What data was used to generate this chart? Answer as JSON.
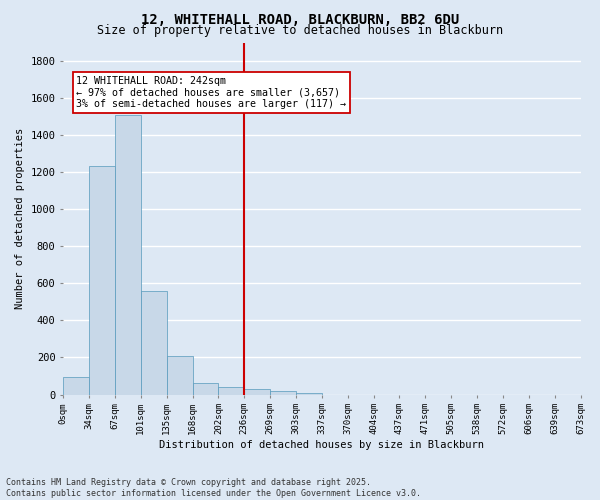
{
  "title": "12, WHITEHALL ROAD, BLACKBURN, BB2 6DU",
  "subtitle": "Size of property relative to detached houses in Blackburn",
  "xlabel": "Distribution of detached houses by size in Blackburn",
  "ylabel": "Number of detached properties",
  "bar_color": "#c8d8e8",
  "bar_edge_color": "#5599bb",
  "background_color": "#dde8f4",
  "grid_color": "#ffffff",
  "vline_color": "#cc0000",
  "vline_x": 7,
  "annotation_text": "12 WHITEHALL ROAD: 242sqm\n← 97% of detached houses are smaller (3,657)\n3% of semi-detached houses are larger (117) →",
  "annotation_box_facecolor": "#ffffff",
  "annotation_box_edgecolor": "#cc0000",
  "tick_labels": [
    "0sqm",
    "34sqm",
    "67sqm",
    "101sqm",
    "135sqm",
    "168sqm",
    "202sqm",
    "236sqm",
    "269sqm",
    "303sqm",
    "337sqm",
    "370sqm",
    "404sqm",
    "437sqm",
    "471sqm",
    "505sqm",
    "538sqm",
    "572sqm",
    "606sqm",
    "639sqm",
    "673sqm"
  ],
  "bar_heights": [
    93,
    1235,
    1510,
    560,
    210,
    65,
    40,
    30,
    20,
    10,
    0,
    0,
    0,
    0,
    0,
    0,
    0,
    0,
    0,
    0
  ],
  "ylim": [
    0,
    1900
  ],
  "yticks": [
    0,
    200,
    400,
    600,
    800,
    1000,
    1200,
    1400,
    1600,
    1800
  ],
  "footer": "Contains HM Land Registry data © Crown copyright and database right 2025.\nContains public sector information licensed under the Open Government Licence v3.0.",
  "n_bars": 20
}
